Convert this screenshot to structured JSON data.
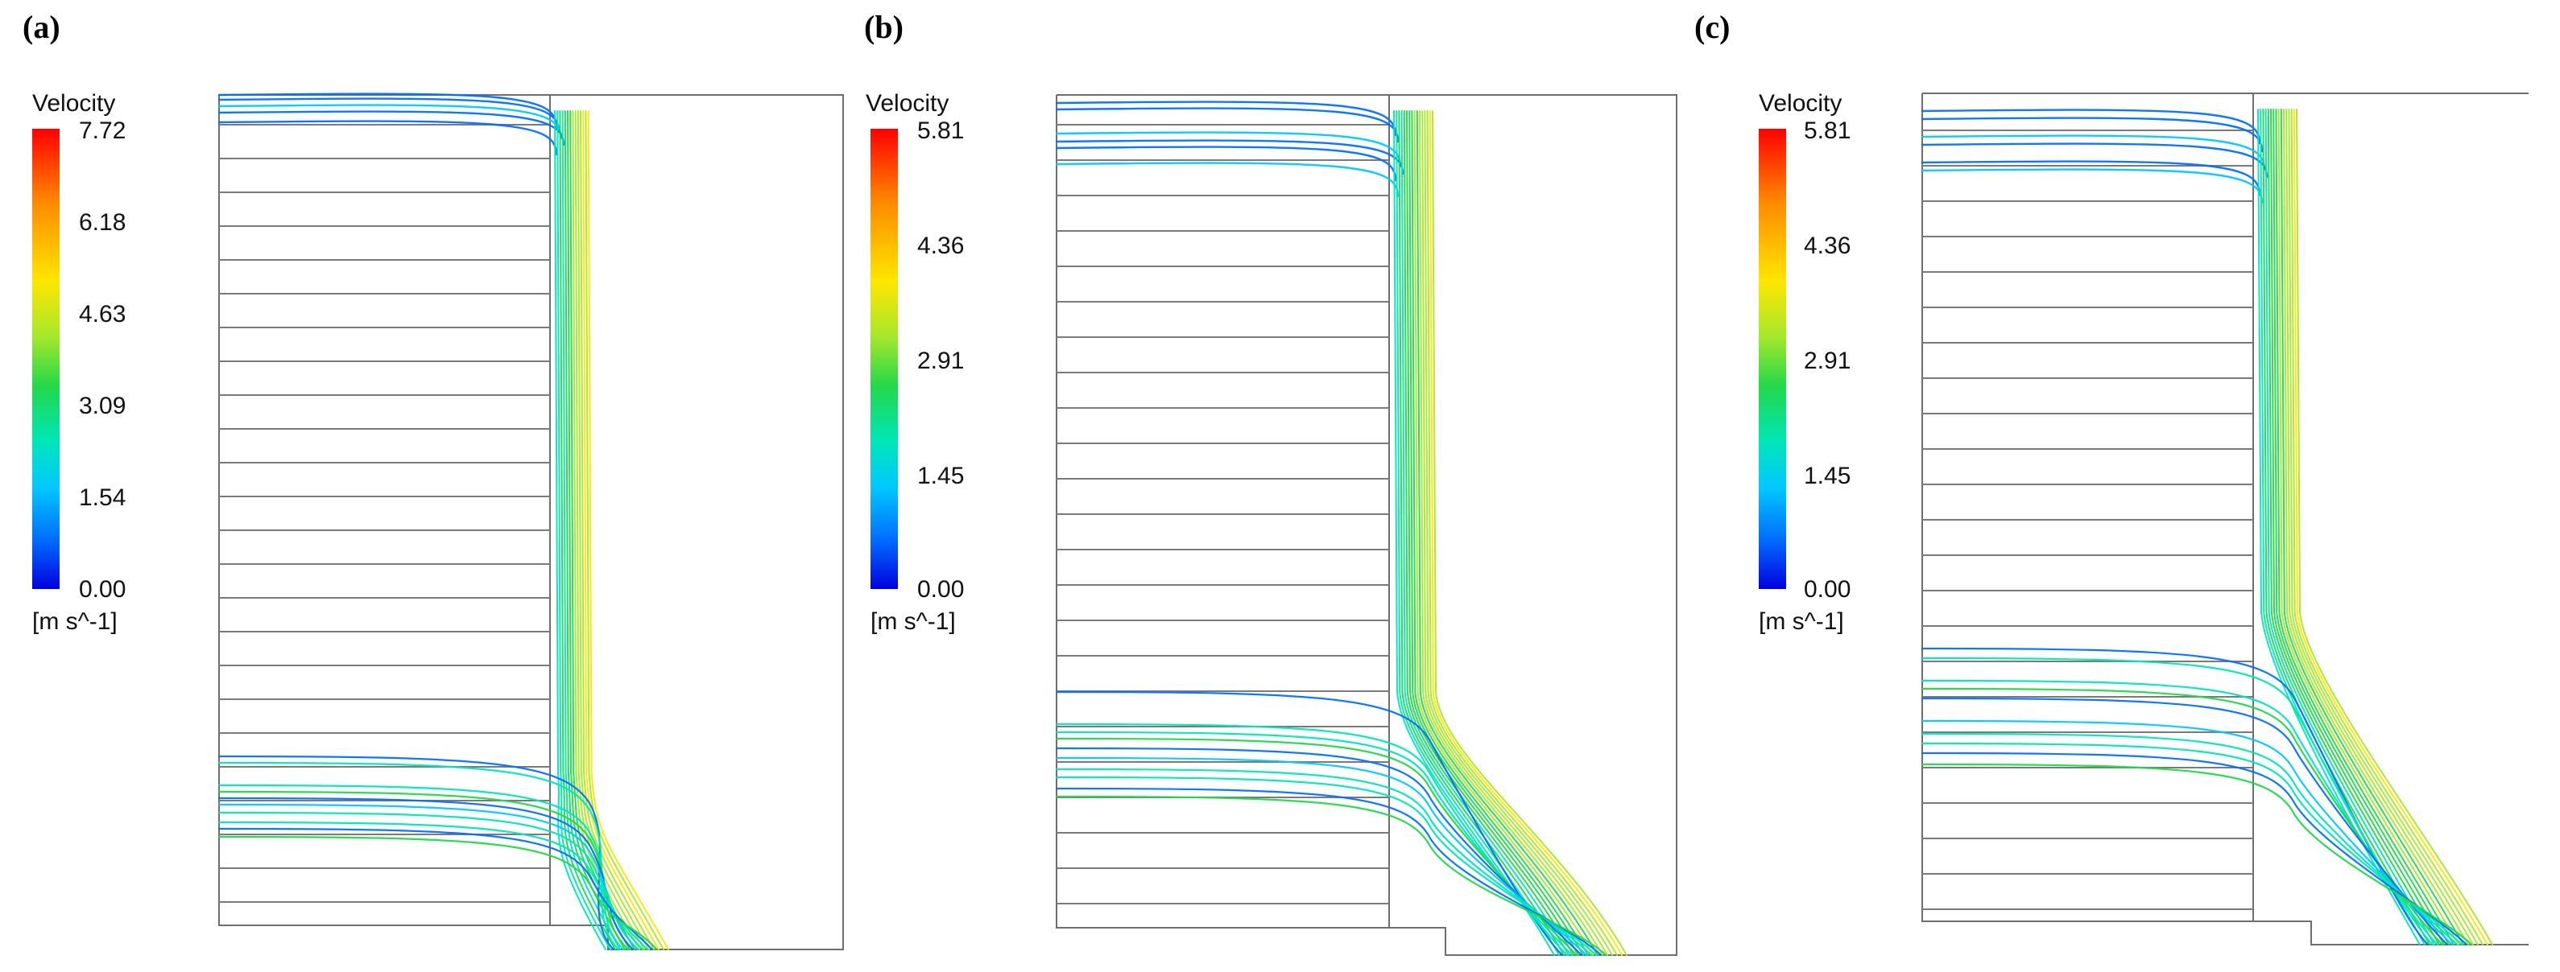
{
  "panels": [
    {
      "label": "(a)",
      "legend": {
        "title": "Velocity",
        "unit": "[m s^-1]",
        "ticks": [
          "7.72",
          "6.18",
          "4.63",
          "3.09",
          "1.54",
          "0.00"
        ]
      }
    },
    {
      "label": "(b)",
      "legend": {
        "title": "Velocity",
        "unit": "[m s^-1]",
        "ticks": [
          "5.81",
          "4.36",
          "2.91",
          "1.45",
          "0.00"
        ]
      }
    },
    {
      "label": "(c)",
      "legend": {
        "title": "Velocity",
        "unit": "[m s^-1]",
        "ticks": [
          "5.81",
          "4.36",
          "2.91",
          "1.45",
          "0.00"
        ]
      }
    }
  ],
  "colors": {
    "low": "#0000e0",
    "mid": "#22d84a",
    "high": "#ff0000",
    "outline": "#6e6e6e"
  }
}
